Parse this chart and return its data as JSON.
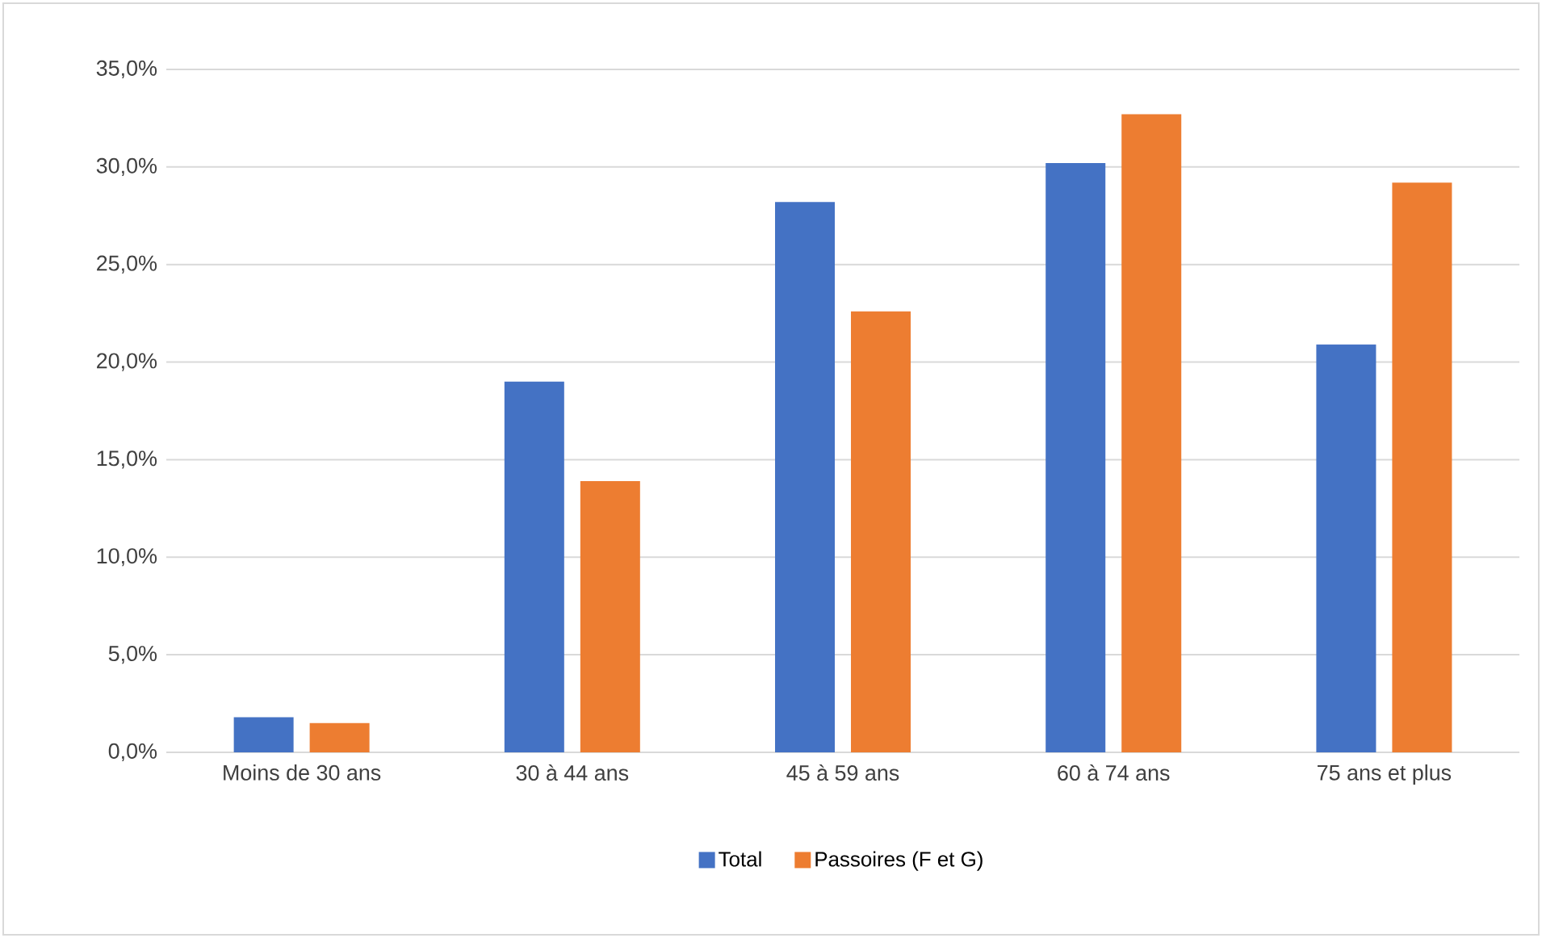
{
  "chart_data": {
    "type": "bar",
    "categories": [
      "Moins de 30 ans",
      "30 à 44 ans",
      "45 à 59 ans",
      "60 à 74 ans",
      "75 ans et plus"
    ],
    "series": [
      {
        "name": "Total",
        "color": "#4472c4",
        "values": [
          1.8,
          19.0,
          28.2,
          30.2,
          20.9
        ]
      },
      {
        "name": "Passoires (F et G)",
        "color": "#ed7d31",
        "values": [
          1.5,
          13.9,
          22.6,
          32.7,
          29.2
        ]
      }
    ],
    "ylim": [
      0,
      35
    ],
    "yticks": [
      {
        "value": 0,
        "label": "0,0%"
      },
      {
        "value": 5,
        "label": "5,0%"
      },
      {
        "value": 10,
        "label": "10,0%"
      },
      {
        "value": 15,
        "label": "15,0%"
      },
      {
        "value": 20,
        "label": "20,0%"
      },
      {
        "value": 25,
        "label": "25,0%"
      },
      {
        "value": 30,
        "label": "30,0%"
      },
      {
        "value": 35,
        "label": "35,0%"
      }
    ],
    "grid": "y",
    "legend": "bottom"
  }
}
